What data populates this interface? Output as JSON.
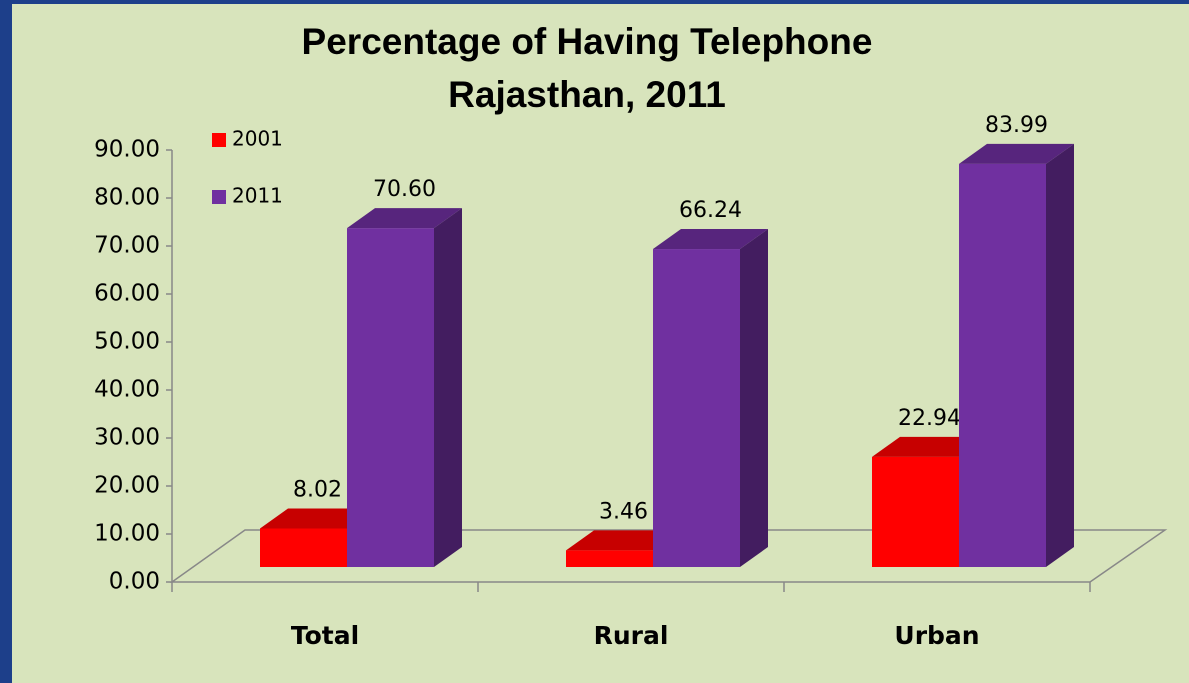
{
  "chart_data": {
    "type": "bar3d",
    "title": "Percentage of Having Telephone",
    "subtitle": "Rajasthan, 2011",
    "categories": [
      "Total",
      "Rural",
      "Urban"
    ],
    "series": [
      {
        "name": "2001",
        "color": "#ff0000",
        "values": [
          8.02,
          3.46,
          22.94
        ],
        "value_labels": [
          "8.02",
          "3.46",
          "22.94"
        ]
      },
      {
        "name": "2011",
        "color": "#7030a0",
        "values": [
          70.6,
          66.24,
          83.99
        ],
        "value_labels": [
          "70.60",
          "66.24",
          "83.99"
        ]
      }
    ],
    "ylim": [
      0,
      90
    ],
    "yticks": [
      {
        "value": 0,
        "label": "0.00"
      },
      {
        "value": 10,
        "label": "10.00"
      },
      {
        "value": 20,
        "label": "20.00"
      },
      {
        "value": 30,
        "label": "30.00"
      },
      {
        "value": 40,
        "label": "40.00"
      },
      {
        "value": 50,
        "label": "50.00"
      },
      {
        "value": 60,
        "label": "60.00"
      },
      {
        "value": 70,
        "label": "70.00"
      },
      {
        "value": 80,
        "label": "80.00"
      },
      {
        "value": 90,
        "label": "90.00"
      }
    ],
    "legend": "upper left",
    "grid": false
  }
}
